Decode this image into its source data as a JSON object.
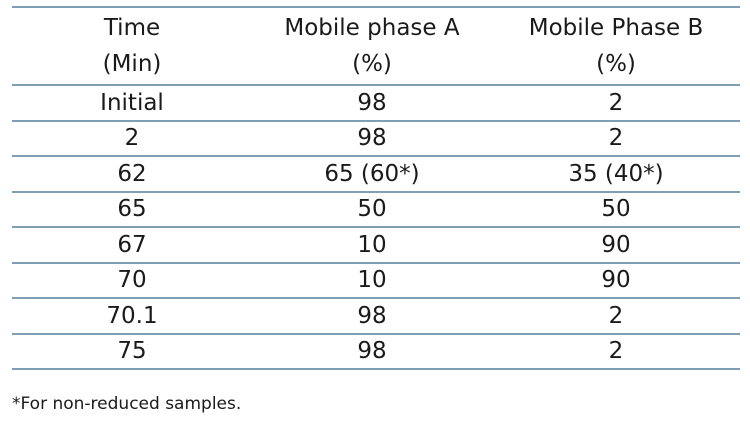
{
  "table": {
    "headers": [
      [
        "Time",
        "(Min)"
      ],
      [
        "Mobile phase A",
        "(%)"
      ],
      [
        "Mobile Phase B",
        "(%)"
      ]
    ],
    "rows": [
      [
        "Initial",
        "98",
        "2"
      ],
      [
        "2",
        "98",
        "2"
      ],
      [
        "62",
        "65 (60*)",
        "35 (40*)"
      ],
      [
        "65",
        "50",
        "50"
      ],
      [
        "67",
        "10",
        "90"
      ],
      [
        "70",
        "10",
        "90"
      ],
      [
        "70.1",
        "98",
        "2"
      ],
      [
        "75",
        "98",
        "2"
      ]
    ]
  },
  "footnote": "*For non-reduced samples."
}
